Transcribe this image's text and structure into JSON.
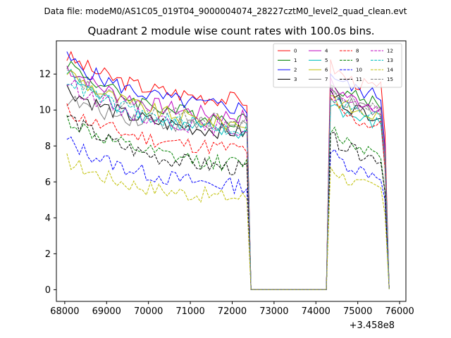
{
  "chart_data": {
    "type": "line",
    "suptitle": "Data file: modeM0/AS1C05_019T04_9000004074_28227cztM0_level2_quad_clean.evt",
    "title": "Quadrant 2 module wise count rates with 100.0s bins.",
    "xlabel": "",
    "ylabel": "",
    "x_offset_label": "+3.458e8",
    "xlim": [
      67800,
      76150
    ],
    "ylim": [
      -0.65,
      13.85
    ],
    "xticks": [
      68000,
      69000,
      70000,
      71000,
      72000,
      73000,
      74000,
      75000,
      76000
    ],
    "yticks": [
      0,
      2,
      4,
      6,
      8,
      10,
      12
    ],
    "x_start": 68050,
    "x_step": 100,
    "n_points": 78,
    "gap_x_range": [
      72450,
      74250
    ],
    "legend_columns": 4,
    "legend_position": "upper right",
    "series": [
      {
        "name": "0",
        "color": "#ff0000",
        "dash": "solid",
        "base": 10.3,
        "start": 13.0,
        "seg2": 11.0
      },
      {
        "name": "1",
        "color": "#008000",
        "dash": "solid",
        "base": 9.1,
        "start": 12.7,
        "seg2": 10.2
      },
      {
        "name": "2",
        "color": "#0000ff",
        "dash": "solid",
        "base": 9.8,
        "start": 12.9,
        "seg2": 10.6
      },
      {
        "name": "3",
        "color": "#000000",
        "dash": "solid",
        "base": 8.5,
        "start": 11.2,
        "seg2": 9.5
      },
      {
        "name": "4",
        "color": "#bf00bf",
        "dash": "solid",
        "base": 9.3,
        "start": 12.4,
        "seg2": 10.0
      },
      {
        "name": "5",
        "color": "#00bfbf",
        "dash": "solid",
        "base": 8.3,
        "start": 12.1,
        "seg2": 9.0
      },
      {
        "name": "6",
        "color": "#bfbf00",
        "dash": "solid",
        "base": 8.9,
        "start": 12.2,
        "seg2": 9.4
      },
      {
        "name": "7",
        "color": "#808080",
        "dash": "solid",
        "base": 8.8,
        "start": 10.6,
        "seg2": 9.6
      },
      {
        "name": "8",
        "color": "#ff0000",
        "dash": "dashed",
        "base": 7.6,
        "start": 10.0,
        "seg2": 8.9
      },
      {
        "name": "9",
        "color": "#008000",
        "dash": "dashed",
        "base": 6.7,
        "start": 9.5,
        "seg2": 7.5
      },
      {
        "name": "10",
        "color": "#0000ff",
        "dash": "dashed",
        "base": 5.5,
        "start": 8.3,
        "seg2": 6.2
      },
      {
        "name": "11",
        "color": "#000000",
        "dash": "dashed",
        "base": 6.4,
        "start": 9.7,
        "seg2": 7.1
      },
      {
        "name": "12",
        "color": "#bf00bf",
        "dash": "dashed",
        "base": 8.6,
        "start": 11.6,
        "seg2": 9.6
      },
      {
        "name": "13",
        "color": "#00bfbf",
        "dash": "dashed",
        "base": 8.6,
        "start": 11.8,
        "seg2": 9.4
      },
      {
        "name": "14",
        "color": "#bfbf00",
        "dash": "dashed",
        "base": 4.9,
        "start": 7.2,
        "seg2": 5.4
      },
      {
        "name": "15",
        "color": "#808080",
        "dash": "dashed",
        "base": 9.0,
        "start": 12.0,
        "seg2": 9.8
      }
    ]
  }
}
